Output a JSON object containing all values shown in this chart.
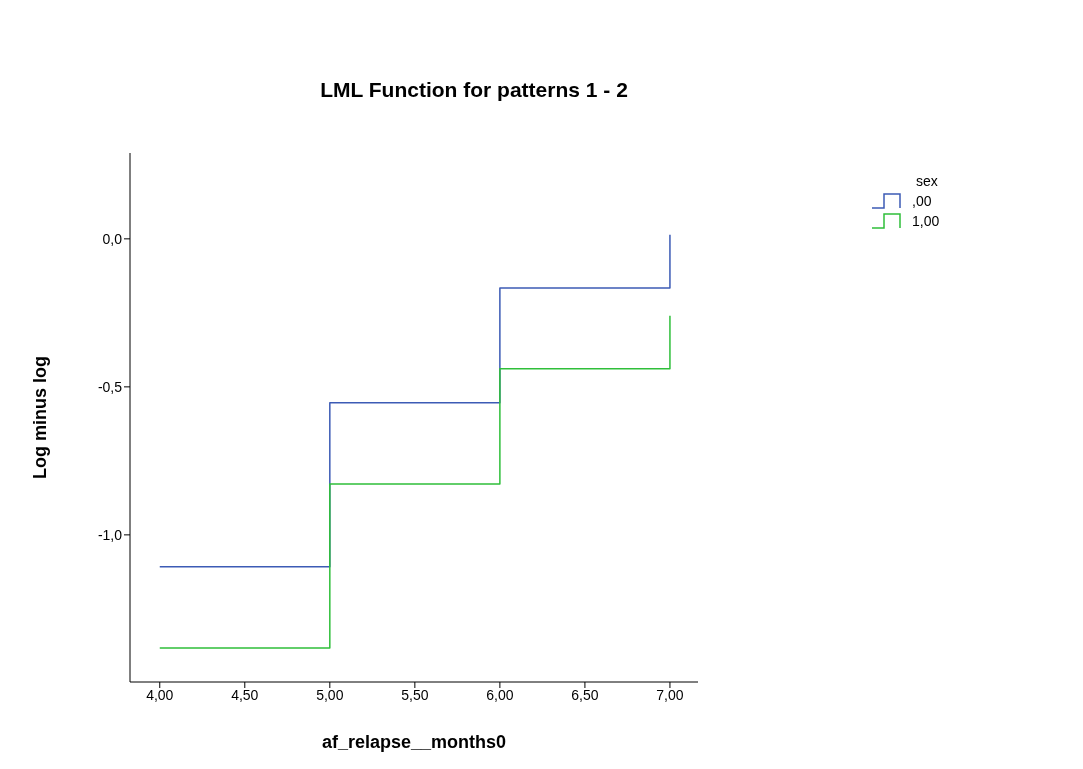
{
  "chart_data": {
    "type": "step",
    "title": "LML Function for patterns 1 - 2",
    "xlabel": "af_relapse__months0",
    "ylabel": "Log minus log",
    "legend_title": "sex",
    "series": [
      {
        "name": ",00",
        "color": "#3c5bb5",
        "x": [
          4,
          5,
          6,
          7
        ],
        "values": [
          -1.108,
          -0.554,
          -0.166,
          0.014
        ]
      },
      {
        "name": "1,00",
        "color": "#2fbf3a",
        "x": [
          4,
          5,
          6,
          7
        ],
        "values": [
          -1.382,
          -0.828,
          -0.439,
          -0.26
        ]
      }
    ],
    "xlim": [
      3.825,
      7.165
    ],
    "ylim": [
      -1.497,
      0.29
    ],
    "xticks": [
      {
        "value": 4,
        "label": "4,00"
      },
      {
        "value": 4.5,
        "label": "4,50"
      },
      {
        "value": 5,
        "label": "5,00"
      },
      {
        "value": 5.5,
        "label": "5,50"
      },
      {
        "value": 6,
        "label": "6,00"
      },
      {
        "value": 6.5,
        "label": "6,50"
      },
      {
        "value": 7,
        "label": "7,00"
      }
    ],
    "yticks": [
      {
        "value": -1,
        "label": "-1,0"
      },
      {
        "value": -0.5,
        "label": "-0,5"
      },
      {
        "value": 0,
        "label": "0,0"
      }
    ],
    "grid": false,
    "legend": "top right"
  }
}
